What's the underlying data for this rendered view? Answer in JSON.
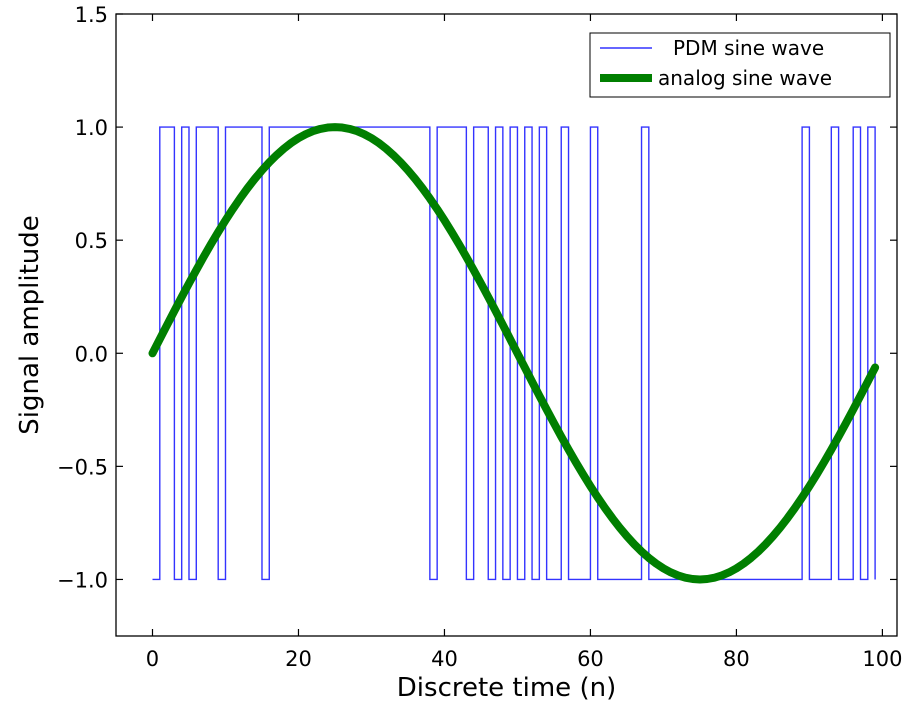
{
  "chart_data": {
    "type": "line",
    "xlabel": "Discrete time (n)",
    "ylabel": "Signal amplitude",
    "xlim": [
      -5,
      102
    ],
    "ylim": [
      -1.25,
      1.5
    ],
    "xticks": [
      0,
      20,
      40,
      60,
      80,
      100
    ],
    "yticks": [
      -1.0,
      -0.5,
      0.0,
      0.5,
      1.0,
      1.5
    ],
    "xtick_labels": [
      "0",
      "20",
      "40",
      "60",
      "80",
      "100"
    ],
    "ytick_labels": [
      "−1.0",
      "−0.5",
      "0.0",
      "0.5",
      "1.0",
      "1.5"
    ],
    "grid": false,
    "legend_position": "top-right",
    "series": [
      {
        "name": "PDM sine wave",
        "style": "step",
        "color": "#3333ff",
        "x": [
          0,
          1,
          2,
          3,
          4,
          5,
          6,
          7,
          8,
          9,
          10,
          11,
          12,
          13,
          14,
          15,
          16,
          17,
          18,
          19,
          20,
          21,
          22,
          23,
          24,
          25,
          26,
          27,
          28,
          29,
          30,
          31,
          32,
          33,
          34,
          35,
          36,
          37,
          38,
          39,
          40,
          41,
          42,
          43,
          44,
          45,
          46,
          47,
          48,
          49,
          50,
          51,
          52,
          53,
          54,
          55,
          56,
          57,
          58,
          59,
          60,
          61,
          62,
          63,
          64,
          65,
          66,
          67,
          68,
          69,
          70,
          71,
          72,
          73,
          74,
          75,
          76,
          77,
          78,
          79,
          80,
          81,
          82,
          83,
          84,
          85,
          86,
          87,
          88,
          89,
          90,
          91,
          92,
          93,
          94,
          95,
          96,
          97,
          98,
          99
        ],
        "values": [
          -1,
          1,
          1,
          -1,
          1,
          -1,
          1,
          1,
          1,
          -1,
          1,
          1,
          1,
          1,
          1,
          -1,
          1,
          1,
          1,
          1,
          1,
          1,
          1,
          1,
          1,
          1,
          1,
          1,
          1,
          1,
          1,
          1,
          1,
          1,
          1,
          1,
          1,
          1,
          -1,
          1,
          1,
          1,
          1,
          -1,
          1,
          1,
          -1,
          1,
          -1,
          1,
          -1,
          1,
          -1,
          1,
          -1,
          -1,
          1,
          -1,
          -1,
          -1,
          1,
          -1,
          -1,
          -1,
          -1,
          -1,
          -1,
          1,
          -1,
          -1,
          -1,
          -1,
          -1,
          -1,
          -1,
          -1,
          -1,
          -1,
          -1,
          -1,
          -1,
          -1,
          -1,
          -1,
          -1,
          -1,
          -1,
          -1,
          -1,
          1,
          -1,
          -1,
          -1,
          1,
          -1,
          -1,
          1,
          -1,
          1,
          -1
        ]
      },
      {
        "name": "analog sine wave",
        "style": "line",
        "color": "#007f00",
        "x": [
          0,
          1,
          2,
          3,
          4,
          5,
          6,
          7,
          8,
          9,
          10,
          11,
          12,
          13,
          14,
          15,
          16,
          17,
          18,
          19,
          20,
          21,
          22,
          23,
          24,
          25,
          26,
          27,
          28,
          29,
          30,
          31,
          32,
          33,
          34,
          35,
          36,
          37,
          38,
          39,
          40,
          41,
          42,
          43,
          44,
          45,
          46,
          47,
          48,
          49,
          50,
          51,
          52,
          53,
          54,
          55,
          56,
          57,
          58,
          59,
          60,
          61,
          62,
          63,
          64,
          65,
          66,
          67,
          68,
          69,
          70,
          71,
          72,
          73,
          74,
          75,
          76,
          77,
          78,
          79,
          80,
          81,
          82,
          83,
          84,
          85,
          86,
          87,
          88,
          89,
          90,
          91,
          92,
          93,
          94,
          95,
          96,
          97,
          98,
          99
        ],
        "values": [
          0.0,
          0.0628,
          0.1253,
          0.1874,
          0.2487,
          0.309,
          0.3681,
          0.4258,
          0.4818,
          0.5358,
          0.5878,
          0.6374,
          0.6845,
          0.729,
          0.7705,
          0.809,
          0.8443,
          0.8763,
          0.9048,
          0.9298,
          0.9511,
          0.9686,
          0.9823,
          0.9921,
          0.998,
          1.0,
          0.998,
          0.9921,
          0.9823,
          0.9686,
          0.9511,
          0.9298,
          0.9048,
          0.8763,
          0.8443,
          0.809,
          0.7705,
          0.729,
          0.6845,
          0.6374,
          0.5878,
          0.5358,
          0.4818,
          0.4258,
          0.3681,
          0.309,
          0.2487,
          0.1874,
          0.1253,
          0.0628,
          0.0,
          -0.0628,
          -0.1253,
          -0.1874,
          -0.2487,
          -0.309,
          -0.3681,
          -0.4258,
          -0.4818,
          -0.5358,
          -0.5878,
          -0.6374,
          -0.6845,
          -0.729,
          -0.7705,
          -0.809,
          -0.8443,
          -0.8763,
          -0.9048,
          -0.9298,
          -0.9511,
          -0.9686,
          -0.9823,
          -0.9921,
          -0.998,
          -1.0,
          -0.998,
          -0.9921,
          -0.9823,
          -0.9686,
          -0.9511,
          -0.9298,
          -0.9048,
          -0.8763,
          -0.8443,
          -0.809,
          -0.7705,
          -0.729,
          -0.6845,
          -0.6374,
          -0.5878,
          -0.5358,
          -0.4818,
          -0.4258,
          -0.3681,
          -0.309,
          -0.2487,
          -0.1874,
          -0.1253,
          -0.0628
        ]
      }
    ]
  }
}
